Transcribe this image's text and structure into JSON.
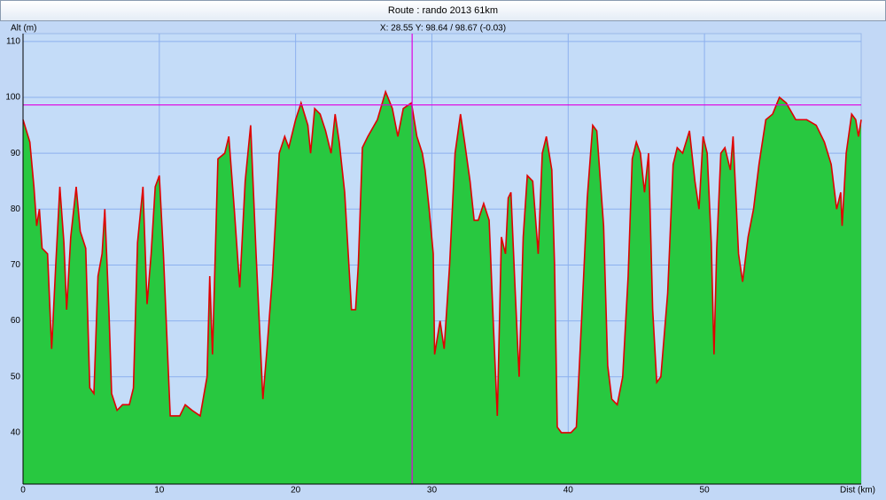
{
  "chart_data": {
    "type": "area-line",
    "title": "Route : rando 2013 61km",
    "ylabel": "Alt (m)",
    "xlabel": "Dist (km)",
    "readout": "X: 28.55 Y: 98.64 / 98.67 (-0.03)",
    "cursor": {
      "x": 28.55,
      "y": 98.64,
      "color": "#e000e0"
    },
    "grid": true,
    "xlim": [
      0,
      61.5
    ],
    "ylim": [
      30.8,
      111.4
    ],
    "xticks": [
      0,
      10,
      20,
      30,
      40,
      50
    ],
    "yticks": [
      40,
      50,
      60,
      70,
      80,
      90,
      100,
      110
    ],
    "x": [
      0,
      0.5,
      0.8,
      1.0,
      1.2,
      1.4,
      1.8,
      2.1,
      2.4,
      2.7,
      3.0,
      3.2,
      3.5,
      3.9,
      4.2,
      4.6,
      4.9,
      5.2,
      5.5,
      5.8,
      6.0,
      6.3,
      6.5,
      6.9,
      7.3,
      7.8,
      8.1,
      8.4,
      8.8,
      9.1,
      9.4,
      9.7,
      10.0,
      10.3,
      10.8,
      11.5,
      11.9,
      12.4,
      13.0,
      13.5,
      13.7,
      13.9,
      14.3,
      14.8,
      15.1,
      15.5,
      15.9,
      16.3,
      16.7,
      17.1,
      17.6,
      17.9,
      18.3,
      18.8,
      19.2,
      19.5,
      20.0,
      20.4,
      20.9,
      21.1,
      21.4,
      21.8,
      22.2,
      22.6,
      22.9,
      23.2,
      23.6,
      24.1,
      24.4,
      24.6,
      24.9,
      25.3,
      26.0,
      26.6,
      27.1,
      27.5,
      27.9,
      28.5,
      28.9,
      29.3,
      29.5,
      29.8,
      30.1,
      30.2,
      30.6,
      30.9,
      31.3,
      31.7,
      32.1,
      32.4,
      32.8,
      33.1,
      33.4,
      33.8,
      34.2,
      34.5,
      34.8,
      35.1,
      35.4,
      35.6,
      35.8,
      36.1,
      36.4,
      36.7,
      37.0,
      37.4,
      37.8,
      38.1,
      38.4,
      38.8,
      39.0,
      39.2,
      39.5,
      40.2,
      40.6,
      41.0,
      41.4,
      41.8,
      42.1,
      42.6,
      42.9,
      43.2,
      43.6,
      44.0,
      44.4,
      44.7,
      45.0,
      45.3,
      45.6,
      45.9,
      46.2,
      46.5,
      46.8,
      47.3,
      47.7,
      48.0,
      48.4,
      48.9,
      49.3,
      49.6,
      49.9,
      50.2,
      50.5,
      50.7,
      50.9,
      51.2,
      51.5,
      51.9,
      52.1,
      52.5,
      52.8,
      53.2,
      53.6,
      54.0,
      54.5,
      55.0,
      55.5,
      56.0,
      56.7,
      57.5,
      58.2,
      58.8,
      59.3,
      59.7,
      60.0,
      60.1,
      60.4,
      60.8,
      61.1,
      61.3,
      61.5
    ],
    "series": [
      {
        "color": "#e00000",
        "fill": "#28c840",
        "values": [
          96,
          92,
          84,
          77,
          80,
          73,
          72,
          55,
          70,
          84,
          74,
          62,
          75,
          84,
          76,
          73,
          48,
          47,
          68,
          72,
          80,
          62,
          47,
          44,
          45,
          45,
          48,
          74,
          84,
          63,
          72,
          84,
          86,
          72,
          43,
          43,
          45,
          44,
          43,
          50,
          68,
          54,
          89,
          90,
          93,
          80,
          66,
          85,
          95,
          72,
          46,
          55,
          68,
          90,
          93,
          91,
          96,
          99,
          95,
          90,
          98,
          97,
          94,
          90,
          97,
          92,
          83,
          62,
          62,
          70,
          91,
          93,
          96,
          101,
          98,
          93,
          98,
          99,
          93,
          90,
          87,
          80,
          72,
          54,
          60,
          55,
          70,
          90,
          97,
          92,
          85,
          78,
          78,
          81,
          78,
          60,
          43,
          75,
          72,
          82,
          83,
          66,
          50,
          75,
          86,
          85,
          72,
          90,
          93,
          87,
          70,
          41,
          40,
          40,
          41,
          61,
          82,
          95,
          94,
          77,
          52,
          46,
          45,
          50,
          68,
          89,
          92,
          90,
          83,
          90,
          62,
          49,
          50,
          65,
          88,
          91,
          90,
          94,
          85,
          80,
          93,
          90,
          74,
          54,
          73,
          90,
          91,
          87,
          93,
          72,
          67,
          75,
          80,
          88,
          96,
          97,
          100,
          99,
          96,
          96,
          95,
          92,
          88,
          80,
          83,
          77,
          90,
          97,
          96,
          93,
          96
        ]
      }
    ]
  }
}
